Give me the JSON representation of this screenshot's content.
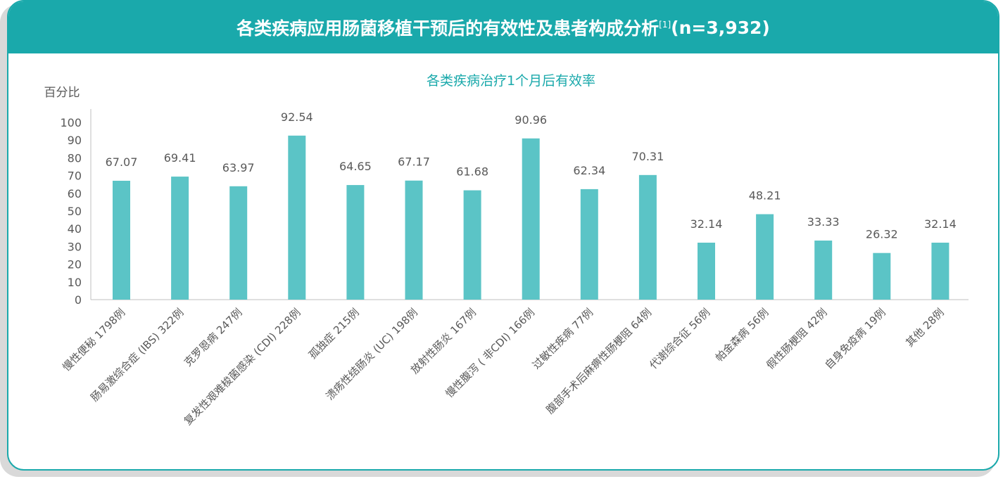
{
  "header": {
    "title": "各类疾病应用肠菌移植干预后的有效性及患者构成分析",
    "ref": "[1]",
    "n": "(n=3,932)"
  },
  "colors": {
    "accent": "#1aa9ab",
    "bar": "#5bc4c6",
    "text": "#595959"
  },
  "chart_data": {
    "type": "bar",
    "title": "各类疾病治疗1个月后有效率",
    "ylabel": "百分比",
    "xlabel": "",
    "ylim": [
      0,
      100
    ],
    "yticks": [
      0,
      10,
      20,
      30,
      40,
      50,
      60,
      70,
      80,
      90,
      100
    ],
    "grid": false,
    "categories": [
      "慢性便秘 1798例",
      "肠易激综合症 (IBS) 322例",
      "克罗恩病 247例",
      "复发性艰难梭菌感染 (CDI) 228例",
      "孤独症 215例",
      "溃疡性结肠炎 (UC) 198例",
      "放射性肠炎 167例",
      "慢性腹泻 ( 非CDI) 166例",
      "过敏性疾病 77例",
      "腹部手术后麻痹性肠梗阻 64例",
      "代谢综合征 56例",
      "帕金森病 56例",
      "假性肠梗阻 42例",
      "自身免疫病 19例",
      "其他 28例"
    ],
    "values": [
      67.07,
      69.41,
      63.97,
      92.54,
      64.65,
      67.17,
      61.68,
      90.96,
      62.34,
      70.31,
      32.14,
      48.21,
      33.33,
      26.32,
      32.14
    ],
    "value_labels": [
      "67.07",
      "69.41",
      "63.97",
      "92.54",
      "64.65",
      "67.17",
      "61.68",
      "90.96",
      "62.34",
      "70.31",
      "32.14",
      "48.21",
      "33.33",
      "26.32",
      "32.14"
    ]
  }
}
